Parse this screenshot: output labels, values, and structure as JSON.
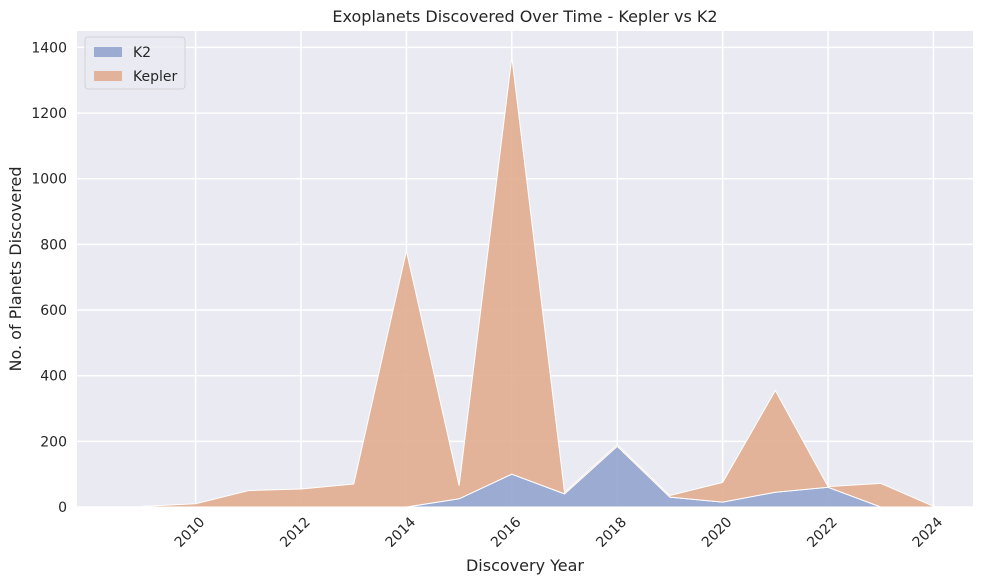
{
  "chart_data": {
    "type": "area",
    "stacked": true,
    "title": "Exoplanets Discovered Over Time - Kepler vs K2",
    "xlabel": "Discovery Year",
    "ylabel": "No. of Planets Discovered",
    "x": [
      2009,
      2010,
      2011,
      2012,
      2013,
      2014,
      2015,
      2016,
      2017,
      2018,
      2019,
      2020,
      2021,
      2022,
      2023,
      2024
    ],
    "series": [
      {
        "name": "K2",
        "color": "#8da0cb",
        "values": [
          0,
          0,
          0,
          0,
          0,
          0,
          25,
          100,
          40,
          185,
          30,
          15,
          45,
          60,
          0,
          0
        ]
      },
      {
        "name": "Kepler",
        "color": "#e1a889",
        "values": [
          2,
          10,
          50,
          55,
          70,
          780,
          40,
          1270,
          5,
          5,
          5,
          60,
          310,
          2,
          72,
          2
        ]
      }
    ],
    "xlim": [
      2007.75,
      2024.75
    ],
    "ylim": [
      0,
      1450
    ],
    "xticks": [
      2010,
      2012,
      2014,
      2016,
      2018,
      2020,
      2022,
      2024
    ],
    "yticks": [
      0,
      200,
      400,
      600,
      800,
      1000,
      1200,
      1400
    ],
    "legend_position": "upper left",
    "grid": true,
    "plot_background": "#eaeaf2"
  }
}
